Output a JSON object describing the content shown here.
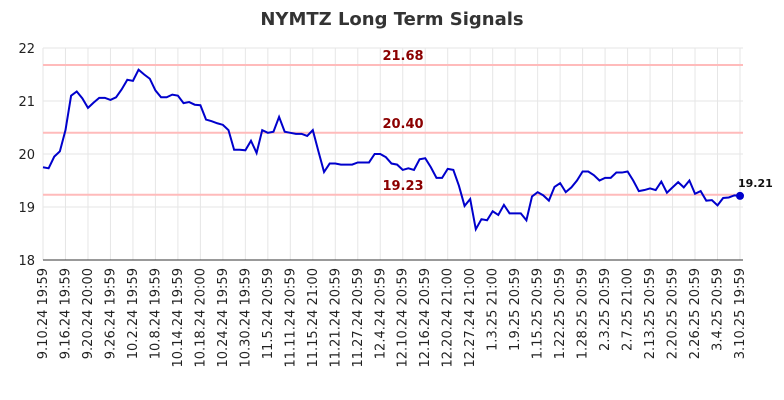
{
  "chart_data": {
    "type": "line",
    "title": "NYMTZ Long Term Signals",
    "categories": [
      "9.10.24 19:59",
      null,
      null,
      null,
      "9.16.24 19:59",
      null,
      null,
      null,
      "9.20.24 20:00",
      null,
      null,
      null,
      "9.26.24 19:59",
      null,
      null,
      null,
      "10.2.24 19:59",
      null,
      null,
      null,
      "10.8.24 19:59",
      null,
      null,
      null,
      "10.14.24 19:59",
      null,
      null,
      null,
      "10.18.24 20:00",
      null,
      null,
      null,
      "10.24.24 19:59",
      null,
      null,
      null,
      "10.30.24 19:59",
      null,
      null,
      null,
      "11.5.24 20:59",
      null,
      null,
      null,
      "11.11.24 20:59",
      null,
      null,
      null,
      "11.15.24 21:00",
      null,
      null,
      null,
      "11.21.24 20:59",
      null,
      null,
      null,
      "11.27.24 20:59",
      null,
      null,
      null,
      "12.4.24 20:59",
      null,
      null,
      null,
      "12.10.24 20:59",
      null,
      null,
      null,
      "12.16.24 20:59",
      null,
      null,
      null,
      "12.20.24 21:00",
      null,
      null,
      null,
      "12.27.24 21:00",
      null,
      null,
      null,
      "1.3.25 21:00",
      null,
      null,
      null,
      "1.9.25 20:59",
      null,
      null,
      null,
      "1.15.25 20:59",
      null,
      null,
      null,
      "1.22.25 20:59",
      null,
      null,
      null,
      "1.28.25 20:59",
      null,
      null,
      null,
      "2.3.25 20:59",
      null,
      null,
      null,
      "2.7.25 21:00",
      null,
      null,
      null,
      "2.13.25 20:59",
      null,
      null,
      null,
      "2.20.25 20:59",
      null,
      null,
      null,
      "2.26.25 20:59",
      null,
      null,
      null,
      "3.4.25 20:59",
      null,
      null,
      null,
      "3.10.25 19:59"
    ],
    "series": [
      {
        "name": "NYMTZ",
        "color": "#0000cc",
        "values": [
          19.75,
          19.73,
          19.95,
          20.05,
          20.45,
          21.1,
          21.18,
          21.05,
          20.87,
          20.97,
          21.06,
          21.06,
          21.02,
          21.07,
          21.22,
          21.4,
          21.38,
          21.59,
          21.5,
          21.42,
          21.2,
          21.07,
          21.07,
          21.12,
          21.1,
          20.96,
          20.98,
          20.93,
          20.92,
          20.65,
          20.62,
          20.58,
          20.55,
          20.45,
          20.08,
          20.08,
          20.07,
          20.25,
          20.02,
          20.45,
          20.4,
          20.42,
          20.7,
          20.42,
          20.4,
          20.38,
          20.38,
          20.34,
          20.45,
          20.05,
          19.66,
          19.82,
          19.82,
          19.8,
          19.8,
          19.8,
          19.84,
          19.84,
          19.84,
          20.0,
          20.0,
          19.94,
          19.82,
          19.8,
          19.7,
          19.73,
          19.7,
          19.9,
          19.92,
          19.75,
          19.55,
          19.55,
          19.72,
          19.7,
          19.4,
          19.02,
          19.15,
          18.58,
          18.77,
          18.75,
          18.92,
          18.85,
          19.04,
          18.88,
          18.88,
          18.88,
          18.75,
          19.2,
          19.28,
          19.22,
          19.12,
          19.38,
          19.45,
          19.28,
          19.37,
          19.5,
          19.67,
          19.67,
          19.6,
          19.5,
          19.55,
          19.55,
          19.65,
          19.65,
          19.67,
          19.5,
          19.3,
          19.32,
          19.35,
          19.32,
          19.48,
          19.27,
          19.37,
          19.47,
          19.37,
          19.5,
          19.25,
          19.3,
          19.12,
          19.13,
          19.03,
          19.17,
          19.18,
          19.22,
          19.21
        ]
      }
    ],
    "reference_lines": [
      {
        "value": 21.68,
        "label": "21.68"
      },
      {
        "value": 20.4,
        "label": "20.40"
      },
      {
        "value": 19.23,
        "label": "19.23"
      }
    ],
    "reference_color": "#ffbbbb",
    "reference_label_color": "#8b0000",
    "ylim": [
      18,
      22
    ],
    "yticks": [
      18,
      19,
      20,
      21,
      22
    ],
    "grid": true
  }
}
